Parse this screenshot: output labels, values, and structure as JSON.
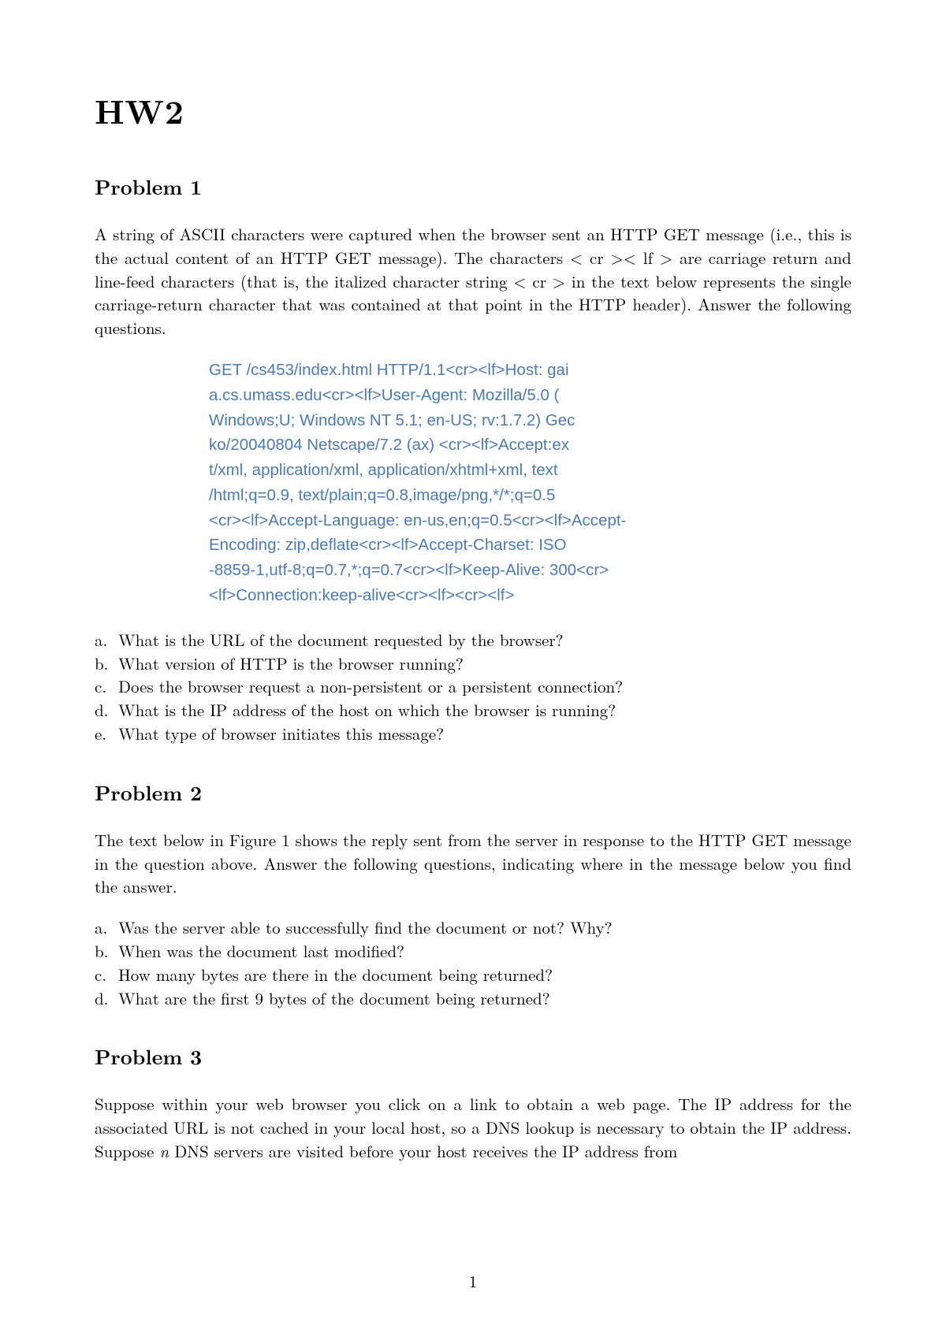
{
  "title": "HW2",
  "page_number": "1",
  "colors": {
    "text": "#000000",
    "http_text": "#4a7bb5",
    "background": "#ffffff"
  },
  "typography": {
    "body_font": "Latin Modern Roman / Computer Modern serif",
    "body_size_pt": 12,
    "title_size_pt": 24,
    "heading_size_pt": 14,
    "http_font": "Arial / Helvetica sans-serif",
    "http_size_pt": 11
  },
  "problems": [
    {
      "heading": "Problem 1",
      "paragraph": "A string of ASCII characters were captured when the browser sent an HTTP GET message (i.e., this is the actual content of an HTTP GET message). The characters < cr >< lf > are carriage return and line-feed characters (that is, the italized character string < cr > in the text below represents the single carriage-return character that was contained at that point in the HTTP header). Answer the following questions.",
      "http_lines": [
        "GET /cs453/index.html HTTP/1.1<cr><lf>Host: gai",
        "a.cs.umass.edu<cr><lf>User-Agent: Mozilla/5.0 (",
        "Windows;U; Windows NT 5.1; en-US; rv:1.7.2) Gec",
        "ko/20040804 Netscape/7.2 (ax) <cr><lf>Accept:ex",
        "t/xml, application/xml, application/xhtml+xml, text",
        "/html;q=0.9, text/plain;q=0.8,image/png,*/*;q=0.5",
        "<cr><lf>Accept-Language: en-us,en;q=0.5<cr><lf>Accept-",
        "Encoding: zip,deflate<cr><lf>Accept-Charset: ISO",
        "-8859-1,utf-8;q=0.7,*;q=0.7<cr><lf>Keep-Alive: 300<cr>",
        "<lf>Connection:keep-alive<cr><lf><cr><lf>"
      ],
      "subitems": [
        {
          "marker": "a.",
          "text": "What is the URL of the document requested by the browser?"
        },
        {
          "marker": "b.",
          "text": "What version of HTTP is the browser running?"
        },
        {
          "marker": "c.",
          "text": "Does the browser request a non-persistent or a persistent connection?"
        },
        {
          "marker": "d.",
          "text": "What is the IP address of the host on which the browser is running?"
        },
        {
          "marker": "e.",
          "text": "What type of browser initiates this message?"
        }
      ]
    },
    {
      "heading": "Problem 2",
      "paragraph": "The text below in Figure 1 shows the reply sent from the server in response to the HTTP GET message in the question above. Answer the following questions, indicating where in the message below you find the answer.",
      "subitems": [
        {
          "marker": "a.",
          "text": "Was the server able to successfully find the document or not? Why?"
        },
        {
          "marker": "b.",
          "text": "When was the document last modified?"
        },
        {
          "marker": "c.",
          "text": "How many bytes are there in the document being returned?"
        },
        {
          "marker": "d.",
          "text": "What are the first 9 bytes of the document being returned?"
        }
      ]
    },
    {
      "heading": "Problem 3",
      "paragraph": "Suppose within your web browser you click on a link to obtain a web page. The IP address for the associated URL is not cached in your local host, so a DNS lookup is necessary to obtain the IP address. Suppose n DNS servers are visited before your host receives the IP address from"
    }
  ]
}
